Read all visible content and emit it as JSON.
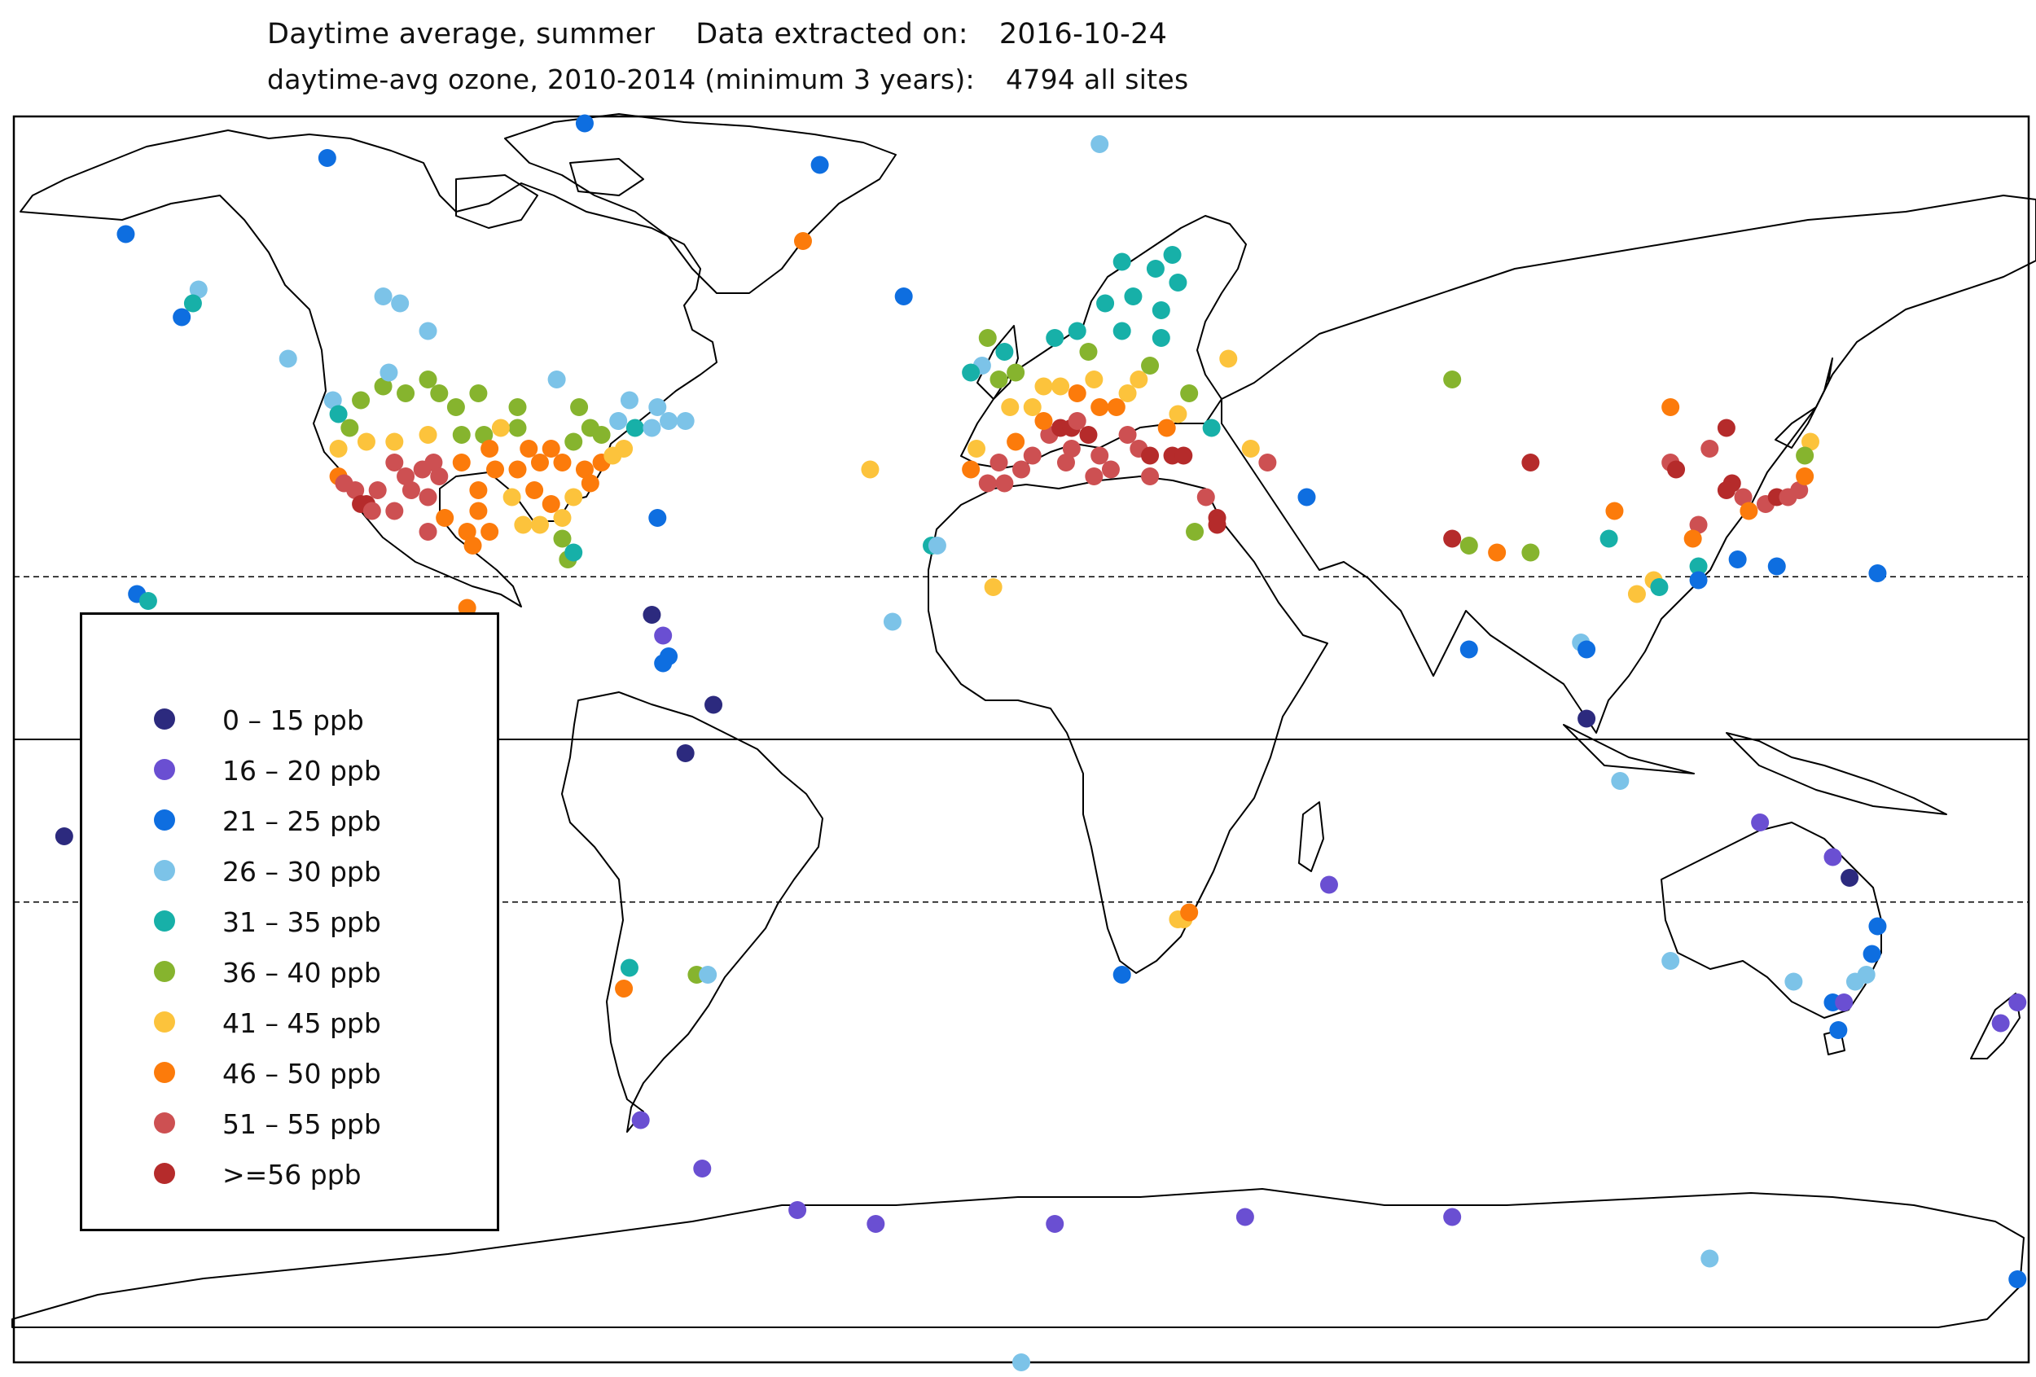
{
  "header": {
    "line1_left": "Daytime average, summer",
    "line1_right_label": "Data extracted on:",
    "line1_date": "2016-10-24",
    "line2_left": "daytime-avg ozone, 2010-2014 (minimum 3 years):",
    "line2_right": "4794 all sites"
  },
  "legend": {
    "items": [
      {
        "label": "0 – 15 ppb",
        "color": "#2c2a7e"
      },
      {
        "label": "16 – 20 ppb",
        "color": "#6a4fd2"
      },
      {
        "label": "21 – 25 ppb",
        "color": "#0e6ee0"
      },
      {
        "label": "26 – 30 ppb",
        "color": "#7cc3e8"
      },
      {
        "label": "31 – 35 ppb",
        "color": "#17b0a8"
      },
      {
        "label": "36 – 40 ppb",
        "color": "#86b42e"
      },
      {
        "label": "41 – 45 ppb",
        "color": "#fcc33c"
      },
      {
        "label": "46 – 50 ppb",
        "color": "#fc7b0b"
      },
      {
        "label": "51 – 55 ppb",
        "color": "#cd5052"
      },
      {
        "label": ">=56 ppb",
        "color": "#b52b2b"
      }
    ]
  },
  "map_data": {
    "projection": "equirectangular",
    "lon_range": [
      -180,
      180
    ],
    "lat_range": [
      -90,
      90
    ],
    "reference_lines": [
      {
        "lat": 23.5,
        "style": "dashed"
      },
      {
        "lat": 0,
        "style": "solid"
      },
      {
        "lat": -23.5,
        "style": "dashed"
      }
    ],
    "sites": [
      {
        "lon": -160,
        "lat": 73,
        "c": 2
      },
      {
        "lon": -124,
        "lat": 84,
        "c": 2
      },
      {
        "lon": -78,
        "lat": 89,
        "c": 2
      },
      {
        "lon": -36,
        "lat": 83,
        "c": 2
      },
      {
        "lon": -39,
        "lat": 72,
        "c": 7
      },
      {
        "lon": 14,
        "lat": 86,
        "c": 3
      },
      {
        "lon": -147,
        "lat": 65,
        "c": 3
      },
      {
        "lon": -148,
        "lat": 63,
        "c": 4
      },
      {
        "lon": -150,
        "lat": 61,
        "c": 2
      },
      {
        "lon": -131,
        "lat": 55,
        "c": 3
      },
      {
        "lon": -114,
        "lat": 64,
        "c": 3
      },
      {
        "lon": -111,
        "lat": 63,
        "c": 3
      },
      {
        "lon": -106,
        "lat": 59,
        "c": 3
      },
      {
        "lon": -123,
        "lat": 49,
        "c": 3
      },
      {
        "lon": -122,
        "lat": 47,
        "c": 4
      },
      {
        "lon": -120,
        "lat": 45,
        "c": 5
      },
      {
        "lon": -118,
        "lat": 49,
        "c": 5
      },
      {
        "lon": -114,
        "lat": 51,
        "c": 5
      },
      {
        "lon": -113,
        "lat": 53,
        "c": 3
      },
      {
        "lon": -110,
        "lat": 50,
        "c": 5
      },
      {
        "lon": -106,
        "lat": 52,
        "c": 5
      },
      {
        "lon": -104,
        "lat": 50,
        "c": 5
      },
      {
        "lon": -97,
        "lat": 50,
        "c": 5
      },
      {
        "lon": -101,
        "lat": 48,
        "c": 5
      },
      {
        "lon": -90,
        "lat": 48,
        "c": 5
      },
      {
        "lon": -122,
        "lat": 42,
        "c": 6
      },
      {
        "lon": -117,
        "lat": 43,
        "c": 6
      },
      {
        "lon": -112,
        "lat": 43,
        "c": 6
      },
      {
        "lon": -106,
        "lat": 44,
        "c": 6
      },
      {
        "lon": -100,
        "lat": 44,
        "c": 5
      },
      {
        "lon": -96,
        "lat": 44,
        "c": 5
      },
      {
        "lon": -122,
        "lat": 38,
        "c": 7
      },
      {
        "lon": -121,
        "lat": 37,
        "c": 8
      },
      {
        "lon": -119,
        "lat": 36,
        "c": 8
      },
      {
        "lon": -118,
        "lat": 34,
        "c": 9
      },
      {
        "lon": -117,
        "lat": 34,
        "c": 9
      },
      {
        "lon": -116,
        "lat": 33,
        "c": 8
      },
      {
        "lon": -115,
        "lat": 36,
        "c": 8
      },
      {
        "lon": -112,
        "lat": 33,
        "c": 8
      },
      {
        "lon": -112,
        "lat": 40,
        "c": 8
      },
      {
        "lon": -110,
        "lat": 38,
        "c": 8
      },
      {
        "lon": -107,
        "lat": 39,
        "c": 8
      },
      {
        "lon": -105,
        "lat": 40,
        "c": 8
      },
      {
        "lon": -106,
        "lat": 35,
        "c": 8
      },
      {
        "lon": -104,
        "lat": 38,
        "c": 8
      },
      {
        "lon": -109,
        "lat": 36,
        "c": 8
      },
      {
        "lon": -103,
        "lat": 32,
        "c": 7
      },
      {
        "lon": -99,
        "lat": 30,
        "c": 7
      },
      {
        "lon": -97,
        "lat": 33,
        "c": 7
      },
      {
        "lon": -95,
        "lat": 30,
        "c": 7
      },
      {
        "lon": -97,
        "lat": 36,
        "c": 7
      },
      {
        "lon": -94,
        "lat": 39,
        "c": 7
      },
      {
        "lon": -90,
        "lat": 39,
        "c": 7
      },
      {
        "lon": -88,
        "lat": 42,
        "c": 7
      },
      {
        "lon": -86,
        "lat": 40,
        "c": 7
      },
      {
        "lon": -84,
        "lat": 42,
        "c": 7
      },
      {
        "lon": -82,
        "lat": 40,
        "c": 7
      },
      {
        "lon": -84,
        "lat": 34,
        "c": 7
      },
      {
        "lon": -87,
        "lat": 36,
        "c": 7
      },
      {
        "lon": -80,
        "lat": 35,
        "c": 6
      },
      {
        "lon": -78,
        "lat": 39,
        "c": 7
      },
      {
        "lon": -75,
        "lat": 40,
        "c": 7
      },
      {
        "lon": -73,
        "lat": 41,
        "c": 6
      },
      {
        "lon": -71,
        "lat": 42,
        "c": 6
      },
      {
        "lon": -69,
        "lat": 45,
        "c": 4
      },
      {
        "lon": -75,
        "lat": 44,
        "c": 5
      },
      {
        "lon": -80,
        "lat": 43,
        "c": 5
      },
      {
        "lon": -90,
        "lat": 45,
        "c": 5
      },
      {
        "lon": -93,
        "lat": 45,
        "c": 6
      },
      {
        "lon": -89,
        "lat": 31,
        "c": 6
      },
      {
        "lon": -86,
        "lat": 31,
        "c": 6
      },
      {
        "lon": -82,
        "lat": 29,
        "c": 5
      },
      {
        "lon": -81,
        "lat": 26,
        "c": 5
      },
      {
        "lon": -80,
        "lat": 27,
        "c": 4
      },
      {
        "lon": -82,
        "lat": 32,
        "c": 6
      },
      {
        "lon": -77,
        "lat": 37,
        "c": 7
      },
      {
        "lon": -100,
        "lat": 40,
        "c": 7
      },
      {
        "lon": -95,
        "lat": 42,
        "c": 7
      },
      {
        "lon": -91,
        "lat": 35,
        "c": 6
      },
      {
        "lon": -66,
        "lat": 45,
        "c": 3
      },
      {
        "lon": -63,
        "lat": 46,
        "c": 3
      },
      {
        "lon": -60,
        "lat": 46,
        "c": 3
      },
      {
        "lon": -72,
        "lat": 46,
        "c": 3
      },
      {
        "lon": -77,
        "lat": 45,
        "c": 5
      },
      {
        "lon": -79,
        "lat": 48,
        "c": 5
      },
      {
        "lon": -83,
        "lat": 52,
        "c": 3
      },
      {
        "lon": -70,
        "lat": 49,
        "c": 3
      },
      {
        "lon": -65,
        "lat": 48,
        "c": 3
      },
      {
        "lon": -98,
        "lat": 28,
        "c": 7
      },
      {
        "lon": -106,
        "lat": 30,
        "c": 8
      },
      {
        "lon": -99,
        "lat": 19,
        "c": 7
      },
      {
        "lon": -66,
        "lat": 18,
        "c": 0
      },
      {
        "lon": -64,
        "lat": 15,
        "c": 1
      },
      {
        "lon": -63,
        "lat": 12,
        "c": 2
      },
      {
        "lon": -64,
        "lat": 11,
        "c": 2
      },
      {
        "lon": -65,
        "lat": 32,
        "c": 2
      },
      {
        "lon": -158,
        "lat": 21,
        "c": 2
      },
      {
        "lon": -156,
        "lat": 20,
        "c": 4
      },
      {
        "lon": -171,
        "lat": -14,
        "c": 0
      },
      {
        "lon": -60,
        "lat": -2,
        "c": 0
      },
      {
        "lon": -55,
        "lat": 5,
        "c": 0
      },
      {
        "lon": -70,
        "lat": -33,
        "c": 4
      },
      {
        "lon": -71,
        "lat": -36,
        "c": 7
      },
      {
        "lon": -58,
        "lat": -34,
        "c": 5
      },
      {
        "lon": -56,
        "lat": -34,
        "c": 3
      },
      {
        "lon": -68,
        "lat": -55,
        "c": 1
      },
      {
        "lon": -27,
        "lat": 39,
        "c": 6
      },
      {
        "lon": -16,
        "lat": 28,
        "c": 4
      },
      {
        "lon": -15,
        "lat": 28,
        "c": 3
      },
      {
        "lon": -23,
        "lat": 17,
        "c": 3
      },
      {
        "lon": -5,
        "lat": 22,
        "c": 6
      },
      {
        "lon": -9,
        "lat": 39,
        "c": 7
      },
      {
        "lon": -8,
        "lat": 42,
        "c": 6
      },
      {
        "lon": -4,
        "lat": 40,
        "c": 8
      },
      {
        "lon": -3,
        "lat": 37,
        "c": 8
      },
      {
        "lon": 0,
        "lat": 39,
        "c": 8
      },
      {
        "lon": 2,
        "lat": 41,
        "c": 8
      },
      {
        "lon": -6,
        "lat": 37,
        "c": 8
      },
      {
        "lon": -1,
        "lat": 43,
        "c": 7
      },
      {
        "lon": 5,
        "lat": 44,
        "c": 8
      },
      {
        "lon": 7,
        "lat": 45,
        "c": 9
      },
      {
        "lon": 9,
        "lat": 45,
        "c": 9
      },
      {
        "lon": 10,
        "lat": 46,
        "c": 8
      },
      {
        "lon": 12,
        "lat": 44,
        "c": 9
      },
      {
        "lon": 14,
        "lat": 41,
        "c": 8
      },
      {
        "lon": 16,
        "lat": 39,
        "c": 8
      },
      {
        "lon": 13,
        "lat": 38,
        "c": 8
      },
      {
        "lon": 8,
        "lat": 40,
        "c": 8
      },
      {
        "lon": 9,
        "lat": 42,
        "c": 8
      },
      {
        "lon": 4,
        "lat": 46,
        "c": 7
      },
      {
        "lon": 2,
        "lat": 48,
        "c": 6
      },
      {
        "lon": -2,
        "lat": 48,
        "c": 6
      },
      {
        "lon": 4,
        "lat": 51,
        "c": 6
      },
      {
        "lon": 7,
        "lat": 51,
        "c": 6
      },
      {
        "lon": 10,
        "lat": 50,
        "c": 7
      },
      {
        "lon": 13,
        "lat": 52,
        "c": 6
      },
      {
        "lon": 14,
        "lat": 48,
        "c": 7
      },
      {
        "lon": 17,
        "lat": 48,
        "c": 7
      },
      {
        "lon": 19,
        "lat": 50,
        "c": 6
      },
      {
        "lon": 21,
        "lat": 52,
        "c": 6
      },
      {
        "lon": 23,
        "lat": 54,
        "c": 5
      },
      {
        "lon": 25,
        "lat": 58,
        "c": 4
      },
      {
        "lon": 18,
        "lat": 59,
        "c": 4
      },
      {
        "lon": 12,
        "lat": 56,
        "c": 5
      },
      {
        "lon": 10,
        "lat": 59,
        "c": 4
      },
      {
        "lon": 6,
        "lat": 58,
        "c": 4
      },
      {
        "lon": 15,
        "lat": 63,
        "c": 4
      },
      {
        "lon": 20,
        "lat": 64,
        "c": 4
      },
      {
        "lon": 25,
        "lat": 62,
        "c": 4
      },
      {
        "lon": 28,
        "lat": 66,
        "c": 4
      },
      {
        "lon": 24,
        "lat": 68,
        "c": 4
      },
      {
        "lon": 18,
        "lat": 69,
        "c": 4
      },
      {
        "lon": 27,
        "lat": 70,
        "c": 4
      },
      {
        "lon": -3,
        "lat": 56,
        "c": 4
      },
      {
        "lon": -1,
        "lat": 53,
        "c": 5
      },
      {
        "lon": -4,
        "lat": 52,
        "c": 5
      },
      {
        "lon": -7,
        "lat": 54,
        "c": 3
      },
      {
        "lon": -9,
        "lat": 53,
        "c": 4
      },
      {
        "lon": -6,
        "lat": 58,
        "c": 5
      },
      {
        "lon": -21,
        "lat": 64,
        "c": 2
      },
      {
        "lon": 19,
        "lat": 44,
        "c": 8
      },
      {
        "lon": 21,
        "lat": 42,
        "c": 8
      },
      {
        "lon": 23,
        "lat": 41,
        "c": 9
      },
      {
        "lon": 23,
        "lat": 38,
        "c": 8
      },
      {
        "lon": 27,
        "lat": 41,
        "c": 9
      },
      {
        "lon": 29,
        "lat": 41,
        "c": 9
      },
      {
        "lon": 26,
        "lat": 45,
        "c": 7
      },
      {
        "lon": 28,
        "lat": 47,
        "c": 6
      },
      {
        "lon": 30,
        "lat": 50,
        "c": 5
      },
      {
        "lon": 37,
        "lat": 55,
        "c": 6
      },
      {
        "lon": 34,
        "lat": 45,
        "c": 4
      },
      {
        "lon": 33,
        "lat": 35,
        "c": 8
      },
      {
        "lon": 35,
        "lat": 32,
        "c": 9
      },
      {
        "lon": 35,
        "lat": 31,
        "c": 9
      },
      {
        "lon": 31,
        "lat": 30,
        "c": 5
      },
      {
        "lon": 44,
        "lat": 40,
        "c": 8
      },
      {
        "lon": 41,
        "lat": 42,
        "c": 6
      },
      {
        "lon": 51,
        "lat": 35,
        "c": 2
      },
      {
        "lon": 77,
        "lat": 52,
        "c": 5
      },
      {
        "lon": 77,
        "lat": 29,
        "c": 9
      },
      {
        "lon": 80,
        "lat": 28,
        "c": 5
      },
      {
        "lon": 85,
        "lat": 27,
        "c": 7
      },
      {
        "lon": 91,
        "lat": 27,
        "c": 5
      },
      {
        "lon": 80,
        "lat": 13,
        "c": 2
      },
      {
        "lon": 100,
        "lat": 14,
        "c": 3
      },
      {
        "lon": 101,
        "lat": 13,
        "c": 2
      },
      {
        "lon": 101,
        "lat": 3,
        "c": 0
      },
      {
        "lon": 107,
        "lat": -6,
        "c": 3
      },
      {
        "lon": 55,
        "lat": -21,
        "c": 1
      },
      {
        "lon": 28,
        "lat": -26,
        "c": 6
      },
      {
        "lon": 29,
        "lat": -26,
        "c": 6
      },
      {
        "lon": 30,
        "lat": -25,
        "c": 7
      },
      {
        "lon": 18,
        "lat": -34,
        "c": 2
      },
      {
        "lon": 91,
        "lat": 40,
        "c": 9
      },
      {
        "lon": 106,
        "lat": 33,
        "c": 7
      },
      {
        "lon": 105,
        "lat": 29,
        "c": 4
      },
      {
        "lon": 113,
        "lat": 23,
        "c": 6
      },
      {
        "lon": 114,
        "lat": 22,
        "c": 4
      },
      {
        "lon": 116,
        "lat": 40,
        "c": 8
      },
      {
        "lon": 117,
        "lat": 39,
        "c": 9
      },
      {
        "lon": 121,
        "lat": 31,
        "c": 8
      },
      {
        "lon": 120,
        "lat": 29,
        "c": 7
      },
      {
        "lon": 121,
        "lat": 25,
        "c": 4
      },
      {
        "lon": 121,
        "lat": 23,
        "c": 2
      },
      {
        "lon": 127,
        "lat": 37,
        "c": 9
      },
      {
        "lon": 129,
        "lat": 35,
        "c": 8
      },
      {
        "lon": 126,
        "lat": 36,
        "c": 9
      },
      {
        "lon": 130,
        "lat": 33,
        "c": 7
      },
      {
        "lon": 133,
        "lat": 34,
        "c": 8
      },
      {
        "lon": 135,
        "lat": 35,
        "c": 9
      },
      {
        "lon": 137,
        "lat": 35,
        "c": 8
      },
      {
        "lon": 139,
        "lat": 36,
        "c": 8
      },
      {
        "lon": 140,
        "lat": 38,
        "c": 7
      },
      {
        "lon": 141,
        "lat": 43,
        "c": 6
      },
      {
        "lon": 140,
        "lat": 41,
        "c": 5
      },
      {
        "lon": 123,
        "lat": 42,
        "c": 8
      },
      {
        "lon": 126,
        "lat": 45,
        "c": 9
      },
      {
        "lon": 110,
        "lat": 21,
        "c": 6
      },
      {
        "lon": 116,
        "lat": 48,
        "c": 7
      },
      {
        "lon": 128,
        "lat": 26,
        "c": 2
      },
      {
        "lon": 135,
        "lat": 25,
        "c": 2
      },
      {
        "lon": 153,
        "lat": 24,
        "c": 2
      },
      {
        "lon": 132,
        "lat": -12,
        "c": 1
      },
      {
        "lon": 145,
        "lat": -17,
        "c": 1
      },
      {
        "lon": 148,
        "lat": -20,
        "c": 0
      },
      {
        "lon": 153,
        "lat": -27,
        "c": 2
      },
      {
        "lon": 152,
        "lat": -31,
        "c": 2
      },
      {
        "lon": 151,
        "lat": -34,
        "c": 3
      },
      {
        "lon": 149,
        "lat": -35,
        "c": 3
      },
      {
        "lon": 145,
        "lat": -38,
        "c": 2
      },
      {
        "lon": 147,
        "lat": -38,
        "c": 1
      },
      {
        "lon": 146,
        "lat": -42,
        "c": 2
      },
      {
        "lon": 138,
        "lat": -35,
        "c": 3
      },
      {
        "lon": 116,
        "lat": -32,
        "c": 3
      },
      {
        "lon": 175,
        "lat": -41,
        "c": 1
      },
      {
        "lon": 178,
        "lat": -38,
        "c": 1
      },
      {
        "lon": 178,
        "lat": -78,
        "c": 2
      },
      {
        "lon": 123,
        "lat": -75,
        "c": 3
      },
      {
        "lon": 40,
        "lat": -69,
        "c": 1
      },
      {
        "lon": 77,
        "lat": -69,
        "c": 1
      },
      {
        "lon": -57,
        "lat": -62,
        "c": 1
      },
      {
        "lon": -40,
        "lat": -68,
        "c": 1
      },
      {
        "lon": -26,
        "lat": -70,
        "c": 1
      },
      {
        "lon": 6,
        "lat": -70,
        "c": 1
      },
      {
        "lon": 0,
        "lat": -90,
        "c": 3
      }
    ]
  }
}
